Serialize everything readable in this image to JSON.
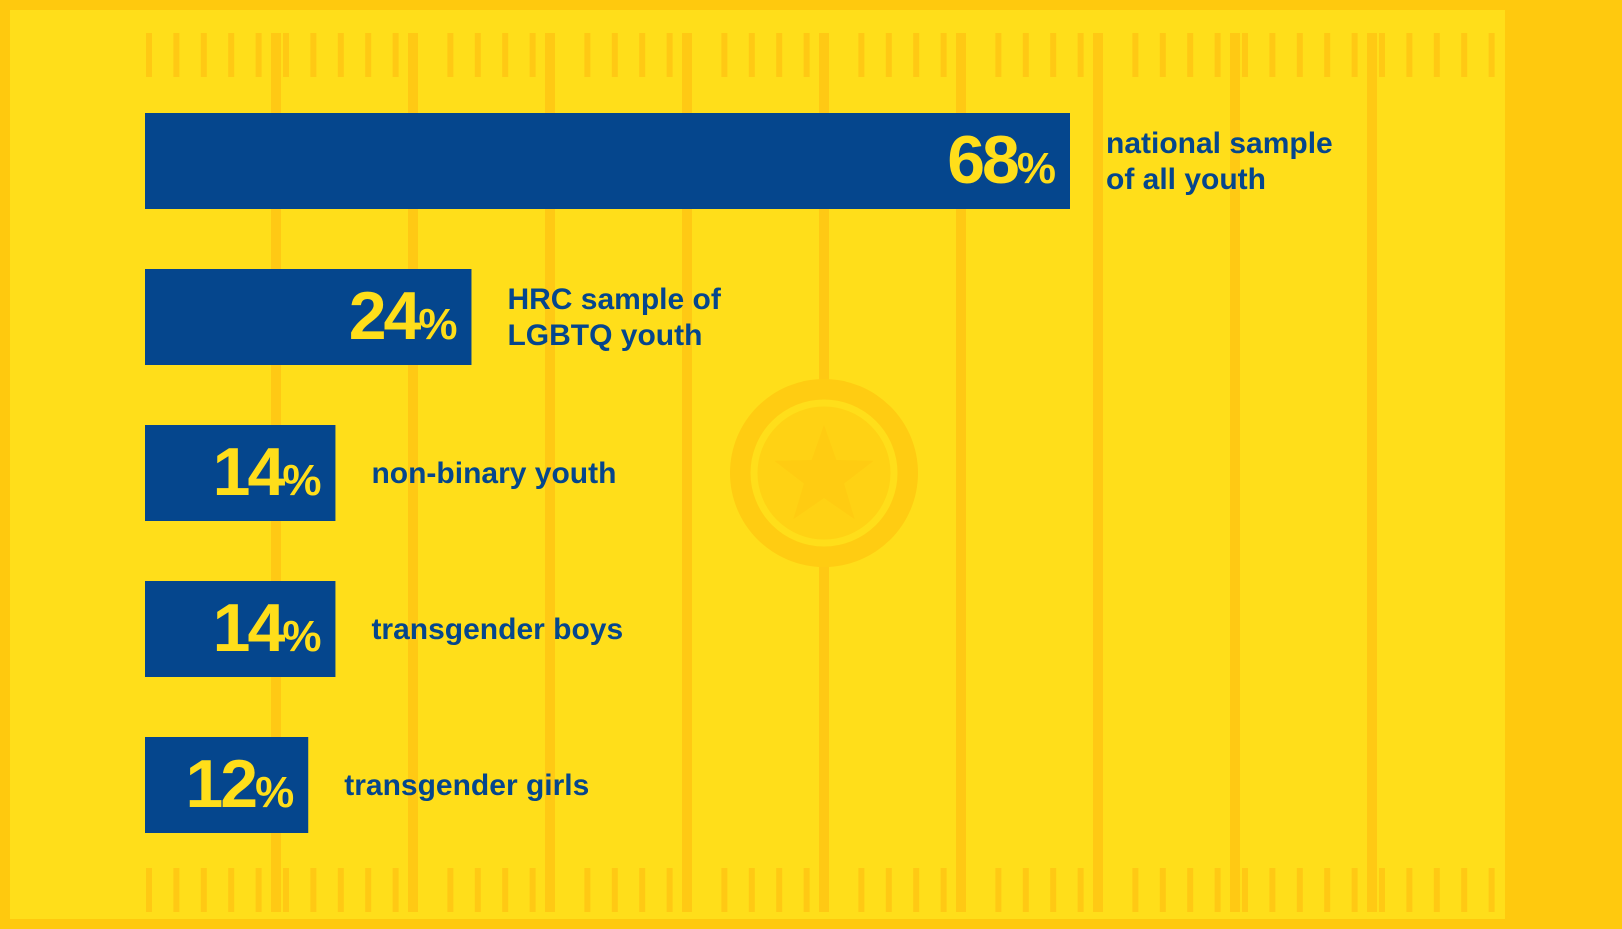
{
  "colors": {
    "frame": "#FFC90E",
    "field": "#FFDE1A",
    "field_line": "#FFC914",
    "bar": "#05468D",
    "value_text": "#FFDE1A",
    "label_text": "#05468D",
    "emblem": "#FFCC12"
  },
  "emblem": {
    "icon": "star-icon"
  },
  "chart_data": {
    "type": "bar",
    "orientation": "horizontal",
    "unit": "%",
    "categories": [
      "national sample of all youth",
      "HRC sample of LGBTQ youth",
      "non-binary youth",
      "transgender boys",
      "transgender girls"
    ],
    "values": [
      68,
      24,
      14,
      14,
      12
    ],
    "value_labels": [
      "68",
      "24",
      "14",
      "14",
      "12"
    ],
    "label_lines": [
      [
        "national sample",
        "of all youth"
      ],
      [
        "HRC sample of",
        "LGBTQ youth"
      ],
      [
        "non-binary youth"
      ],
      [
        "transgender boys"
      ],
      [
        "transgender girls"
      ]
    ],
    "title": "",
    "xlabel": "",
    "ylabel": "",
    "xlim": [
      0,
      68
    ],
    "grid": false,
    "legend": "none"
  }
}
